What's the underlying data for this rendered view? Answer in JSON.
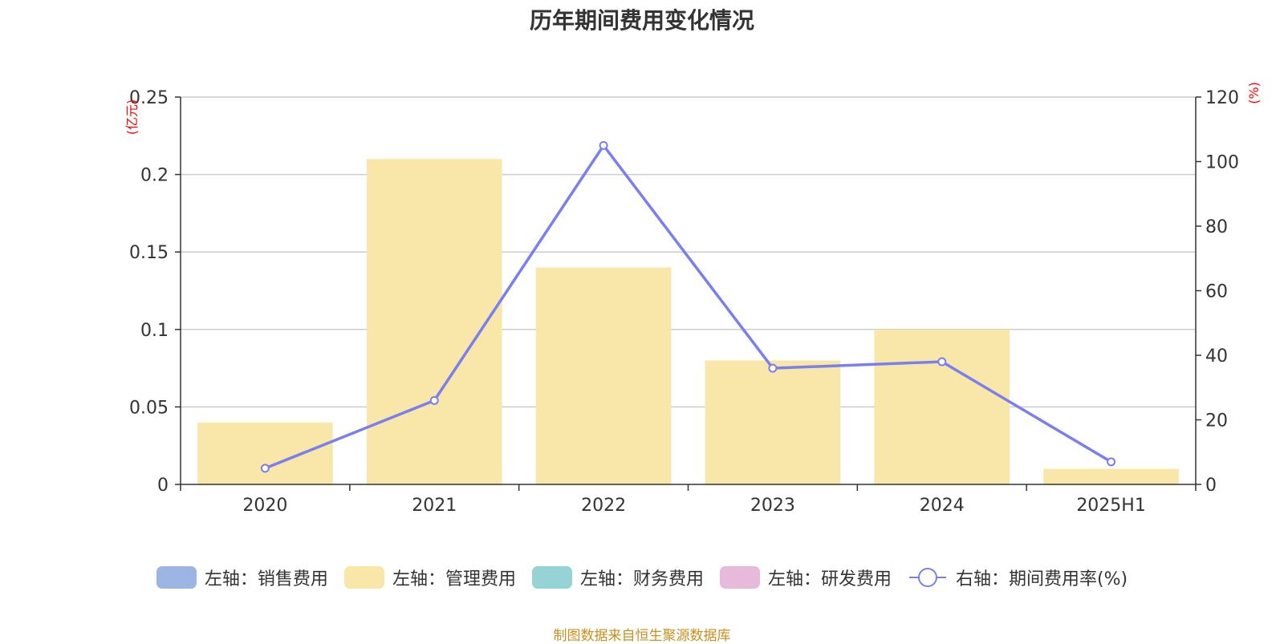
{
  "title": "历年期间费用变化情况",
  "source_note": "制图数据来自恒生聚源数据库",
  "left_unit": "(亿元)",
  "right_unit": "(%)",
  "legend": [
    {
      "label": "左轴：销售费用",
      "color": "#9db5e3",
      "type": "bar"
    },
    {
      "label": "左轴：管理费用",
      "color": "#f8e7a9",
      "type": "bar"
    },
    {
      "label": "左轴：财务费用",
      "color": "#95d3d4",
      "type": "bar"
    },
    {
      "label": "左轴：研发费用",
      "color": "#e7b9da",
      "type": "bar"
    },
    {
      "label": "右轴：期间费用率(%)",
      "color": "#7a7ff0",
      "type": "line"
    }
  ],
  "chart_data": {
    "type": "bar",
    "categories": [
      "2020",
      "2021",
      "2022",
      "2023",
      "2024",
      "2025H1"
    ],
    "series": [
      {
        "name": "左轴：管理费用",
        "axis": "left",
        "type": "bar",
        "color": "#f8e7a9",
        "values": [
          0.04,
          0.21,
          0.14,
          0.08,
          0.1,
          0.01
        ]
      },
      {
        "name": "右轴：期间费用率(%)",
        "axis": "right",
        "type": "line",
        "color": "#7a7ff0",
        "values": [
          5.0,
          26.0,
          105.0,
          36.0,
          38.0,
          7.0
        ]
      }
    ],
    "left_axis": {
      "ylim": [
        0,
        0.25
      ],
      "ticks": [
        "0",
        "0.05",
        "0.1",
        "0.15",
        "0.2",
        "0.25"
      ],
      "unit": "(亿元)"
    },
    "right_axis": {
      "ylim": [
        0,
        120
      ],
      "ticks": [
        "0",
        "20",
        "40",
        "60",
        "80",
        "100",
        "120"
      ],
      "unit": "(%)"
    },
    "grid": true,
    "legend_position": "bottom"
  }
}
